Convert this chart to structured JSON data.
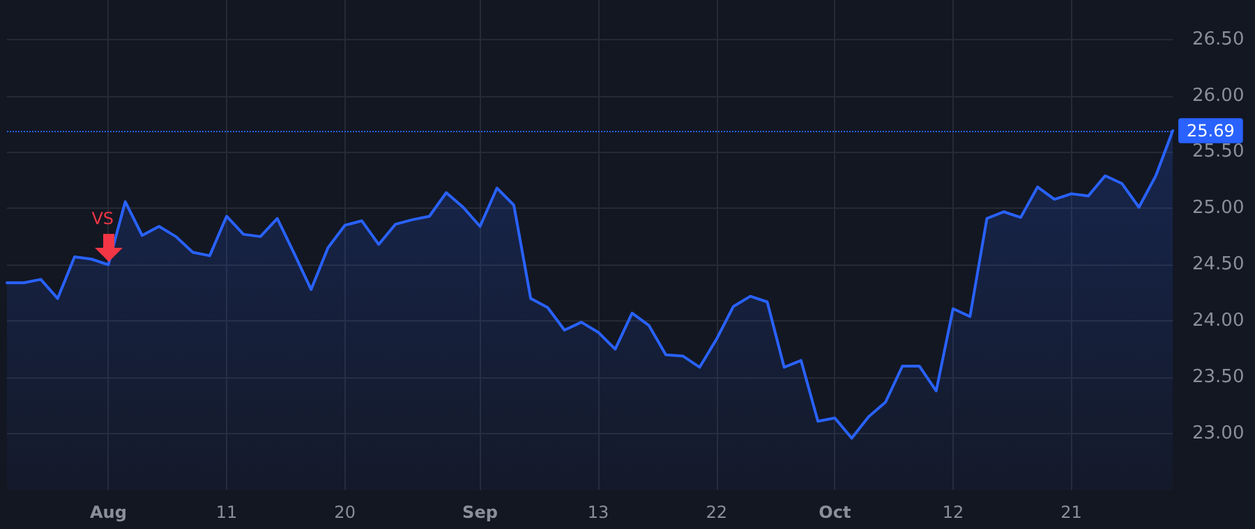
{
  "chart_data": {
    "type": "area",
    "categories": [
      null,
      null,
      null,
      null,
      null,
      null,
      "Aug",
      null,
      null,
      null,
      null,
      null,
      null,
      "11",
      null,
      null,
      null,
      null,
      null,
      null,
      "20",
      null,
      null,
      null,
      null,
      null,
      null,
      null,
      "Sep",
      null,
      null,
      null,
      null,
      null,
      null,
      "13",
      null,
      null,
      null,
      null,
      null,
      null,
      "22",
      null,
      null,
      null,
      null,
      null,
      null,
      "Oct",
      null,
      null,
      null,
      null,
      null,
      null,
      "12",
      null,
      null,
      null,
      null,
      null,
      null,
      "21",
      null,
      null,
      null,
      null,
      null,
      null
    ],
    "series": [
      {
        "color": "#2962ff",
        "values": [
          24.34,
          24.34,
          24.37,
          24.2,
          24.57,
          24.55,
          24.5,
          25.06,
          24.76,
          24.84,
          24.75,
          24.61,
          24.58,
          24.93,
          24.77,
          24.75,
          24.91,
          24.6,
          24.28,
          24.65,
          24.85,
          24.89,
          24.68,
          24.86,
          24.9,
          24.93,
          25.14,
          25.01,
          24.84,
          25.18,
          25.03,
          24.2,
          24.12,
          23.92,
          23.99,
          23.9,
          23.75,
          24.07,
          23.96,
          23.7,
          23.69,
          23.59,
          23.84,
          24.13,
          24.22,
          24.17,
          23.59,
          23.65,
          23.11,
          23.14,
          22.96,
          23.15,
          23.28,
          23.6,
          23.6,
          23.38,
          24.11,
          24.04,
          24.91,
          24.97,
          24.92,
          25.19,
          25.08,
          25.13,
          25.11,
          25.29,
          25.22,
          25.01,
          25.29,
          25.69
        ]
      }
    ],
    "ylim": [
      22.5,
      26.85
    ],
    "yticks": [
      {
        "value": 23,
        "label": "23.00"
      },
      {
        "value": 23.5,
        "label": "23.50"
      },
      {
        "value": 24,
        "label": "24.00"
      },
      {
        "value": 24.5,
        "label": "24.50"
      },
      {
        "value": 25,
        "label": "25.00"
      },
      {
        "value": 25.5,
        "label": "25.50"
      },
      {
        "value": 26,
        "label": "26.00"
      },
      {
        "value": 26.5,
        "label": "26.50"
      }
    ],
    "ref_lines": [
      {
        "axis": "y",
        "value": 25.69,
        "label": "25.69",
        "color": "#2962ff",
        "line_style": "dotted"
      }
    ],
    "annotations": [
      {
        "text": "VS",
        "x": "Aug",
        "y": 24.5
      }
    ],
    "grid": true,
    "marker": "none",
    "line_style": "solid"
  }
}
